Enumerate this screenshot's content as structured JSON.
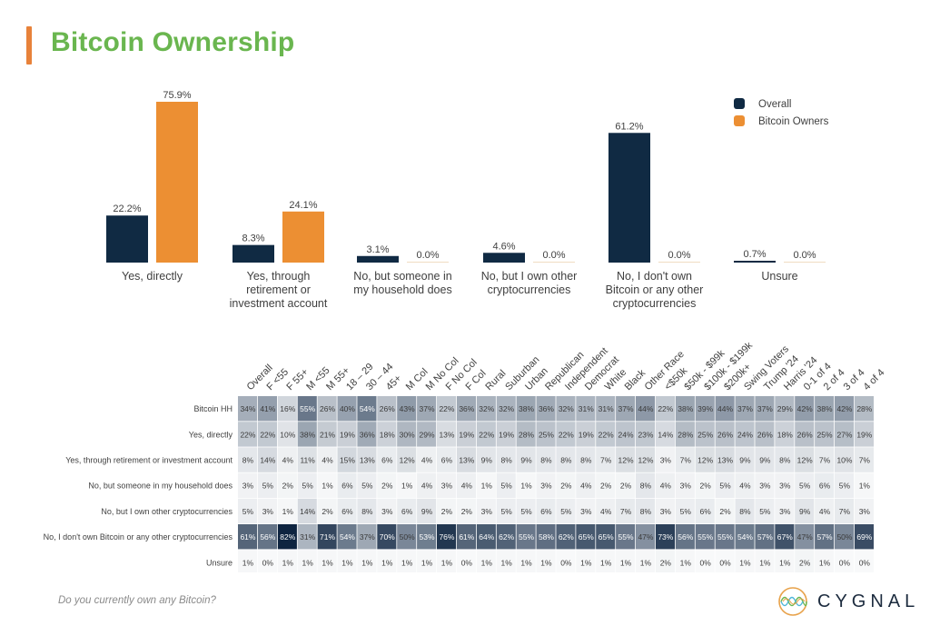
{
  "header": {
    "title": "Bitcoin Ownership"
  },
  "footer": {
    "question": "Do you currently own any Bitcoin?",
    "brand": "CYGNAL"
  },
  "colors": {
    "overall": "#102a43",
    "bitcoin_owners": "#ec8f33",
    "title": "#6ab64f",
    "accent": "#e8823a"
  },
  "chart_data": [
    {
      "type": "bar",
      "title": "Bitcoin Ownership",
      "categories": [
        [
          "Yes, directly"
        ],
        [
          "Yes, through",
          "retirement or",
          "investment account"
        ],
        [
          "No, but someone in",
          "my household does"
        ],
        [
          "No, but I own other",
          "cryptocurrencies"
        ],
        [
          "No, I don't own",
          "Bitcoin or any other",
          "cryptocurrencies"
        ],
        [
          "Unsure"
        ]
      ],
      "series": [
        {
          "name": "Overall",
          "values": [
            22.2,
            8.3,
            3.1,
            4.6,
            61.2,
            0.7
          ],
          "labels": [
            "22.2%",
            "8.3%",
            "3.1%",
            "4.6%",
            "61.2%",
            "0.7%"
          ]
        },
        {
          "name": "Bitcoin Owners",
          "values": [
            75.9,
            24.1,
            0.0,
            0.0,
            0.0,
            0.0
          ],
          "labels": [
            "75.9%",
            "24.1%",
            "0.0%",
            "0.0%",
            "0.0%",
            "0.0%"
          ]
        }
      ],
      "ylim": [
        0,
        80
      ],
      "legend": "top-right",
      "grid": false,
      "xlabel": "",
      "ylabel": ""
    },
    {
      "type": "heatmap",
      "columns": [
        "Overall",
        "F <55",
        "F 55+",
        "M <55",
        "M 55+",
        "18 – 29",
        "30 – 44",
        "45+",
        "M Col",
        "M No Col",
        "F No Col",
        "F Col",
        "Rural",
        "Suburban",
        "Urban",
        "Republican",
        "Independent",
        "Democrat",
        "White",
        "Black",
        "Other Race",
        "<$50k",
        "$50k - $99k",
        "$100k - $199k",
        "$200k+",
        "Swing Voters",
        "Trump '24",
        "Harris '24",
        "0-1 of 4",
        "2 of 4",
        "3 of 4",
        "4 of 4"
      ],
      "rows": [
        {
          "label": "Bitcoin HH",
          "values": [
            34,
            41,
            16,
            55,
            26,
            40,
            54,
            26,
            43,
            37,
            22,
            36,
            32,
            32,
            38,
            36,
            32,
            31,
            31,
            37,
            44,
            22,
            38,
            39,
            44,
            37,
            37,
            29,
            42,
            38,
            42,
            28
          ]
        },
        {
          "label": "Yes, directly",
          "values": [
            22,
            22,
            10,
            38,
            21,
            19,
            36,
            18,
            30,
            29,
            13,
            19,
            22,
            19,
            28,
            25,
            22,
            19,
            22,
            24,
            23,
            14,
            28,
            25,
            26,
            24,
            26,
            18,
            26,
            25,
            27,
            19
          ]
        },
        {
          "label": "Yes, through retirement or investment account",
          "values": [
            8,
            14,
            4,
            11,
            4,
            15,
            13,
            6,
            12,
            4,
            6,
            13,
            9,
            8,
            9,
            8,
            8,
            8,
            7,
            12,
            12,
            3,
            7,
            12,
            13,
            9,
            9,
            8,
            12,
            7,
            10,
            7
          ]
        },
        {
          "label": "No, but someone in my household does",
          "values": [
            3,
            5,
            2,
            5,
            1,
            6,
            5,
            2,
            1,
            4,
            3,
            4,
            1,
            5,
            1,
            3,
            2,
            4,
            2,
            2,
            8,
            4,
            3,
            2,
            5,
            4,
            3,
            3,
            5,
            6,
            5,
            1
          ]
        },
        {
          "label": "No, but I own other cryptocurrencies",
          "values": [
            5,
            3,
            1,
            14,
            2,
            6,
            8,
            3,
            6,
            9,
            2,
            2,
            3,
            5,
            5,
            6,
            5,
            3,
            4,
            7,
            8,
            3,
            5,
            6,
            2,
            8,
            5,
            3,
            9,
            4,
            7,
            3
          ]
        },
        {
          "label": "No, I don't own Bitcoin or any other cryptocurrencies",
          "values": [
            61,
            56,
            82,
            31,
            71,
            54,
            37,
            70,
            50,
            53,
            76,
            61,
            64,
            62,
            55,
            58,
            62,
            65,
            65,
            55,
            47,
            73,
            56,
            55,
            55,
            54,
            57,
            67,
            47,
            57,
            50,
            69
          ]
        },
        {
          "label": "Unsure",
          "values": [
            1,
            0,
            1,
            1,
            1,
            1,
            1,
            1,
            1,
            1,
            1,
            0,
            1,
            1,
            1,
            1,
            0,
            1,
            1,
            1,
            1,
            2,
            1,
            0,
            0,
            1,
            1,
            1,
            2,
            1,
            0,
            0
          ]
        }
      ],
      "value_suffix": "%"
    }
  ]
}
